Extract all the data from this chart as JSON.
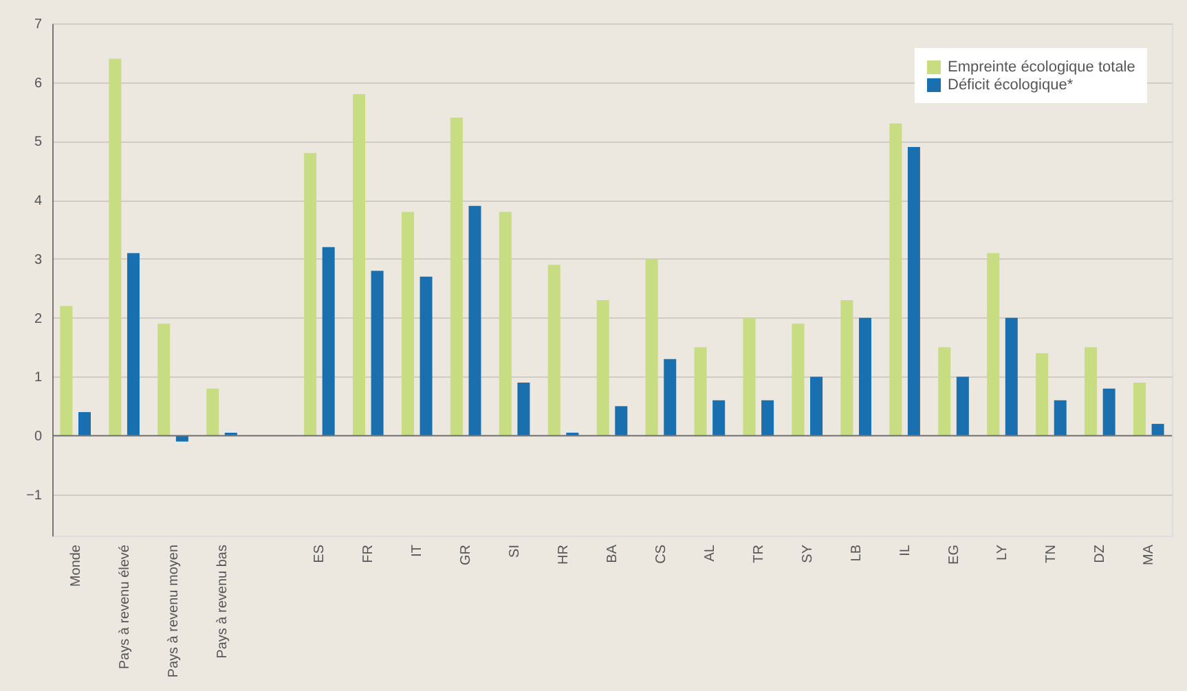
{
  "chart_data": {
    "type": "bar",
    "categories": [
      "Monde",
      "Pays à revenu élevé",
      "Pays à revenu moyen",
      "Pays à revenu bas",
      null,
      "ES",
      "FR",
      "IT",
      "GR",
      "SI",
      "HR",
      "BA",
      "CS",
      "AL",
      "TR",
      "SY",
      "LB",
      "IL",
      "EG",
      "LY",
      "TN",
      "DZ",
      "MA"
    ],
    "series": [
      {
        "name": "Empreinte écologique totale",
        "color": "#c8dc82",
        "values": [
          2.2,
          6.4,
          1.9,
          0.8,
          null,
          4.8,
          5.8,
          3.8,
          5.4,
          3.8,
          2.9,
          2.3,
          3.0,
          1.5,
          2.0,
          1.9,
          2.3,
          5.3,
          1.5,
          3.1,
          1.4,
          1.5,
          0.9
        ]
      },
      {
        "name": "Déficit écologique*",
        "color": "#1a6fae",
        "values": [
          0.4,
          3.1,
          -0.1,
          0.05,
          null,
          3.2,
          2.8,
          2.7,
          3.9,
          0.9,
          0.05,
          0.5,
          1.3,
          0.6,
          0.6,
          1.0,
          2.0,
          4.9,
          1.0,
          2.0,
          0.6,
          0.8,
          0.2
        ]
      }
    ],
    "ylim": [
      -1.7,
      7
    ],
    "yticks": [
      -1,
      0,
      1,
      2,
      3,
      4,
      5,
      6,
      7
    ],
    "grid": "y",
    "legend": "top right"
  }
}
